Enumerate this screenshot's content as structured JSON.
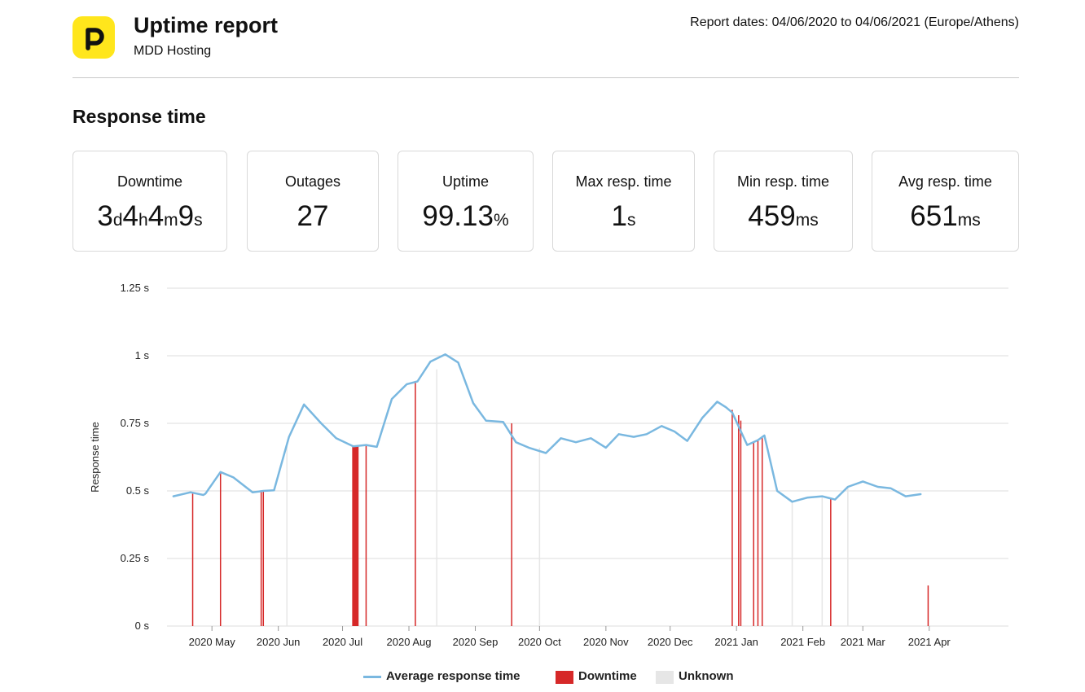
{
  "header": {
    "logo_letter": "P",
    "title": "Uptime report",
    "subtitle": "MDD Hosting",
    "report_dates": "Report dates: 04/06/2020 to 04/06/2021 (Europe/Athens)"
  },
  "section_title": "Response time",
  "stats": [
    {
      "label": "Downtime",
      "parts": [
        [
          "3",
          "d"
        ],
        [
          "4",
          "h"
        ],
        [
          "4",
          "m"
        ],
        [
          "9",
          "s"
        ]
      ]
    },
    {
      "label": "Outages",
      "parts": [
        [
          "27",
          ""
        ]
      ]
    },
    {
      "label": "Uptime",
      "parts": [
        [
          "99.13",
          "%"
        ]
      ]
    },
    {
      "label": "Max resp. time",
      "parts": [
        [
          "1",
          "s"
        ]
      ]
    },
    {
      "label": "Min resp. time",
      "parts": [
        [
          "459",
          "ms"
        ]
      ]
    },
    {
      "label": "Avg resp. time",
      "parts": [
        [
          "651",
          "ms"
        ]
      ]
    }
  ],
  "colors": {
    "line": "#7ab8e0",
    "downtime": "#d62828",
    "unknown": "#e6e6e6",
    "grid": "#dddddd",
    "logo": "#ffe61c"
  },
  "chart_data": {
    "type": "line",
    "ylabel": "Response time",
    "ylim": [
      0,
      1.25
    ],
    "y_ticks": [
      0,
      0.25,
      0.5,
      0.75,
      1,
      1.25
    ],
    "y_tick_labels": [
      "0 s",
      "0.25 s",
      "0.5 s",
      "0.75 s",
      "1 s",
      "1.25 s"
    ],
    "x_range_days": [
      -21,
      372
    ],
    "x_ticks": [
      {
        "day": 0,
        "label": "2020 May"
      },
      {
        "day": 31,
        "label": "2020 Jun"
      },
      {
        "day": 61,
        "label": "2020 Jul"
      },
      {
        "day": 92,
        "label": "2020 Aug"
      },
      {
        "day": 123,
        "label": "2020 Sep"
      },
      {
        "day": 153,
        "label": "2020 Oct"
      },
      {
        "day": 184,
        "label": "2020 Nov"
      },
      {
        "day": 214,
        "label": "2020 Dec"
      },
      {
        "day": 245,
        "label": "2021 Jan"
      },
      {
        "day": 276,
        "label": "2021 Feb"
      },
      {
        "day": 304,
        "label": "2021 Mar"
      },
      {
        "day": 335,
        "label": "2021 Apr"
      }
    ],
    "series": [
      {
        "name": "Average response time",
        "points": [
          [
            -18,
            0.48
          ],
          [
            -10,
            0.495
          ],
          [
            -4,
            0.485
          ],
          [
            -3,
            0.49
          ],
          [
            4,
            0.57
          ],
          [
            10,
            0.55
          ],
          [
            19,
            0.495
          ],
          [
            24,
            0.5
          ],
          [
            29,
            0.502
          ],
          [
            36,
            0.7
          ],
          [
            43,
            0.82
          ],
          [
            51,
            0.75
          ],
          [
            58,
            0.695
          ],
          [
            66,
            0.665
          ],
          [
            72,
            0.67
          ],
          [
            77,
            0.663
          ],
          [
            84,
            0.84
          ],
          [
            91,
            0.895
          ],
          [
            96,
            0.905
          ],
          [
            102,
            0.978
          ],
          [
            109,
            1.005
          ],
          [
            115,
            0.975
          ],
          [
            122,
            0.825
          ],
          [
            128,
            0.76
          ],
          [
            136,
            0.755
          ],
          [
            142,
            0.68
          ],
          [
            148,
            0.66
          ],
          [
            156,
            0.64
          ],
          [
            163,
            0.695
          ],
          [
            170,
            0.68
          ],
          [
            177,
            0.695
          ],
          [
            184,
            0.66
          ],
          [
            190,
            0.71
          ],
          [
            197,
            0.7
          ],
          [
            203,
            0.71
          ],
          [
            210,
            0.74
          ],
          [
            216,
            0.72
          ],
          [
            222,
            0.685
          ],
          [
            229,
            0.77
          ],
          [
            236,
            0.83
          ],
          [
            240,
            0.81
          ],
          [
            243,
            0.79
          ],
          [
            250,
            0.67
          ],
          [
            255,
            0.688
          ],
          [
            258,
            0.705
          ],
          [
            264,
            0.5
          ],
          [
            271,
            0.46
          ],
          [
            278,
            0.475
          ],
          [
            285,
            0.48
          ],
          [
            291,
            0.468
          ],
          [
            297,
            0.515
          ],
          [
            304,
            0.535
          ],
          [
            311,
            0.515
          ],
          [
            317,
            0.51
          ],
          [
            324,
            0.48
          ],
          [
            331,
            0.488
          ]
        ]
      }
    ],
    "downtime": [
      {
        "day": -9,
        "value": 0.49
      },
      {
        "day": 4,
        "value": 0.57
      },
      {
        "day": 23,
        "value": 0.5
      },
      {
        "day": 24,
        "value": 0.5
      },
      {
        "day": 67,
        "value": 0.668,
        "width_days": 3
      },
      {
        "day": 72,
        "value": 0.67
      },
      {
        "day": 95,
        "value": 0.9
      },
      {
        "day": 140,
        "value": 0.75
      },
      {
        "day": 243,
        "value": 0.8
      },
      {
        "day": 246,
        "value": 0.78
      },
      {
        "day": 247,
        "value": 0.76
      },
      {
        "day": 253,
        "value": 0.68
      },
      {
        "day": 255,
        "value": 0.688
      },
      {
        "day": 257,
        "value": 0.7
      },
      {
        "day": 289,
        "value": 0.47
      },
      {
        "day": 334.5,
        "value": 0.15
      }
    ],
    "unknown": [
      {
        "day": 35,
        "value": 0.68
      },
      {
        "day": 105,
        "value": 0.95
      },
      {
        "day": 153,
        "value": 0.66
      },
      {
        "day": 271,
        "value": 0.46
      },
      {
        "day": 285,
        "value": 0.48
      },
      {
        "day": 297,
        "value": 0.515
      }
    ],
    "legend": [
      {
        "name": "Average response time",
        "kind": "line"
      },
      {
        "name": "Downtime",
        "kind": "downtime"
      },
      {
        "name": "Unknown",
        "kind": "unknown"
      }
    ]
  }
}
